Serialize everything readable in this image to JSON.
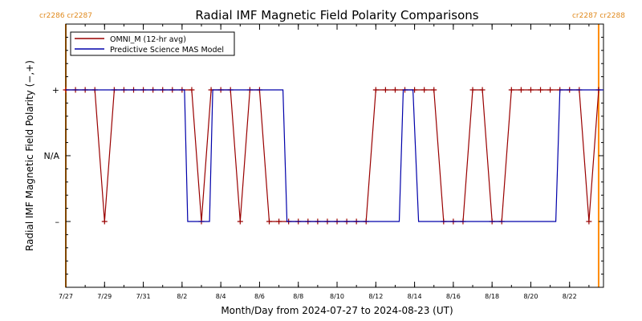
{
  "chart_data": {
    "type": "line",
    "title": "Radial IMF Magnetic Field Polarity Comparisons",
    "xlabel": "Month/Day from 2024-07-27 to 2024-08-23 (UT)",
    "ylabel": "Radial IMF Magnetic Field Polarity (−,+)",
    "x_range": [
      "2024-07-27T00:00",
      "2024-08-23T18:00"
    ],
    "x_ticks": [
      {
        "date": "2024-07-27",
        "label": "7/27"
      },
      {
        "date": "2024-07-29",
        "label": "7/29"
      },
      {
        "date": "2024-07-31",
        "label": "7/31"
      },
      {
        "date": "2024-08-02",
        "label": "8/2"
      },
      {
        "date": "2024-08-04",
        "label": "8/4"
      },
      {
        "date": "2024-08-06",
        "label": "8/6"
      },
      {
        "date": "2024-08-08",
        "label": "8/8"
      },
      {
        "date": "2024-08-10",
        "label": "8/10"
      },
      {
        "date": "2024-08-12",
        "label": "8/12"
      },
      {
        "date": "2024-08-14",
        "label": "8/14"
      },
      {
        "date": "2024-08-16",
        "label": "8/16"
      },
      {
        "date": "2024-08-18",
        "label": "8/18"
      },
      {
        "date": "2024-08-20",
        "label": "8/20"
      },
      {
        "date": "2024-08-22",
        "label": "8/22"
      }
    ],
    "y_categories": [
      {
        "value": 1,
        "label": "+"
      },
      {
        "value": 0,
        "label": "N/A"
      },
      {
        "value": -1,
        "label": "–"
      }
    ],
    "ylim": [
      -2,
      2
    ],
    "legend_position": "top-left",
    "carrington_markers": [
      {
        "date": "2024-07-27T00:00",
        "labels": [
          "cr2286",
          "cr2287"
        ],
        "side": "left"
      },
      {
        "date": "2024-08-23T12:00",
        "labels": [
          "cr2287",
          "cr2288"
        ],
        "side": "right"
      }
    ],
    "series": [
      {
        "name": "OMNI_M (12-hr avg)",
        "color": "#990000",
        "markers": true,
        "points": [
          [
            "2024-07-27T00:00",
            1
          ],
          [
            "2024-07-27T12:00",
            1
          ],
          [
            "2024-07-28T00:00",
            1
          ],
          [
            "2024-07-28T12:00",
            1
          ],
          [
            "2024-07-29T00:00",
            -1
          ],
          [
            "2024-07-29T12:00",
            1
          ],
          [
            "2024-07-30T00:00",
            1
          ],
          [
            "2024-07-30T12:00",
            1
          ],
          [
            "2024-07-31T00:00",
            1
          ],
          [
            "2024-07-31T12:00",
            1
          ],
          [
            "2024-08-01T00:00",
            1
          ],
          [
            "2024-08-01T12:00",
            1
          ],
          [
            "2024-08-02T00:00",
            1
          ],
          [
            "2024-08-02T12:00",
            1
          ],
          [
            "2024-08-03T00:00",
            -1
          ],
          [
            "2024-08-03T12:00",
            1
          ],
          [
            "2024-08-04T00:00",
            1
          ],
          [
            "2024-08-04T12:00",
            1
          ],
          [
            "2024-08-05T00:00",
            -1
          ],
          [
            "2024-08-05T12:00",
            1
          ],
          [
            "2024-08-06T00:00",
            1
          ],
          [
            "2024-08-06T12:00",
            -1
          ],
          [
            "2024-08-07T00:00",
            -1
          ],
          [
            "2024-08-07T12:00",
            -1
          ],
          [
            "2024-08-08T00:00",
            -1
          ],
          [
            "2024-08-08T12:00",
            -1
          ],
          [
            "2024-08-09T00:00",
            -1
          ],
          [
            "2024-08-09T12:00",
            -1
          ],
          [
            "2024-08-10T00:00",
            -1
          ],
          [
            "2024-08-10T12:00",
            -1
          ],
          [
            "2024-08-11T00:00",
            -1
          ],
          [
            "2024-08-11T12:00",
            -1
          ],
          [
            "2024-08-12T00:00",
            1
          ],
          [
            "2024-08-12T12:00",
            1
          ],
          [
            "2024-08-13T00:00",
            1
          ],
          [
            "2024-08-13T12:00",
            1
          ],
          [
            "2024-08-14T00:00",
            1
          ],
          [
            "2024-08-14T12:00",
            1
          ],
          [
            "2024-08-15T00:00",
            1
          ],
          [
            "2024-08-15T12:00",
            -1
          ],
          [
            "2024-08-16T00:00",
            -1
          ],
          [
            "2024-08-16T12:00",
            -1
          ],
          [
            "2024-08-17T00:00",
            1
          ],
          [
            "2024-08-17T12:00",
            1
          ],
          [
            "2024-08-18T00:00",
            -1
          ],
          [
            "2024-08-18T12:00",
            -1
          ],
          [
            "2024-08-19T00:00",
            1
          ],
          [
            "2024-08-19T12:00",
            1
          ],
          [
            "2024-08-20T00:00",
            1
          ],
          [
            "2024-08-20T12:00",
            1
          ],
          [
            "2024-08-21T00:00",
            1
          ],
          [
            "2024-08-21T12:00",
            1
          ],
          [
            "2024-08-22T00:00",
            1
          ],
          [
            "2024-08-22T12:00",
            1
          ],
          [
            "2024-08-23T00:00",
            -1
          ],
          [
            "2024-08-23T12:00",
            1
          ]
        ]
      },
      {
        "name": "Predictive Science MAS Model",
        "color": "#0000aa",
        "markers": false,
        "points": [
          [
            "2024-07-27T00:00",
            1
          ],
          [
            "2024-08-02T03:00",
            1
          ],
          [
            "2024-08-02T07:00",
            -1
          ],
          [
            "2024-08-03T10:00",
            -1
          ],
          [
            "2024-08-03T14:00",
            1
          ],
          [
            "2024-08-07T05:00",
            1
          ],
          [
            "2024-08-07T10:00",
            -1
          ],
          [
            "2024-08-13T05:00",
            -1
          ],
          [
            "2024-08-13T10:00",
            1
          ],
          [
            "2024-08-13T22:00",
            1
          ],
          [
            "2024-08-14T05:00",
            -1
          ],
          [
            "2024-08-21T07:00",
            -1
          ],
          [
            "2024-08-21T12:00",
            1
          ],
          [
            "2024-08-23T18:00",
            1
          ]
        ]
      }
    ]
  }
}
